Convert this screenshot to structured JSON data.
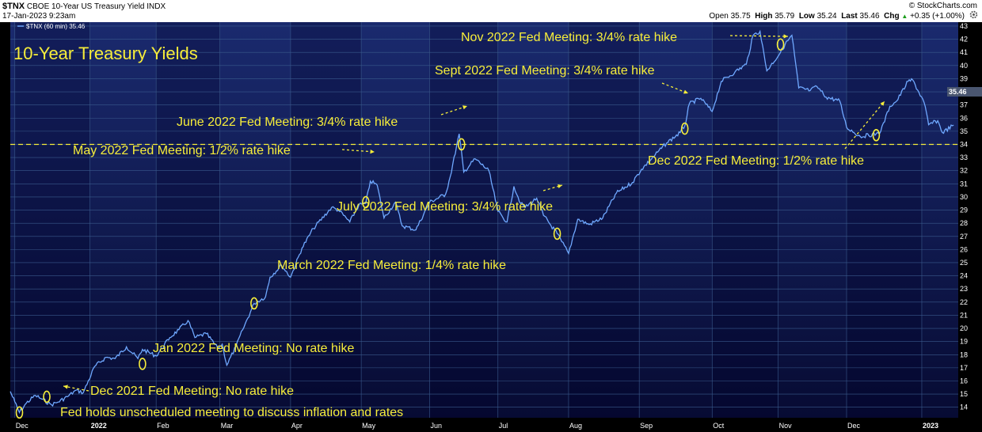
{
  "header": {
    "symbol": "$TNX",
    "name": "CBOE 10-Year US Treasury Yield",
    "exchange": "INDX",
    "date": "17-Jan-2023 9:23am",
    "watermark": "© StockCharts.com",
    "ohlc": [
      {
        "label": "Open",
        "value": "35.75"
      },
      {
        "label": "High",
        "value": "35.79"
      },
      {
        "label": "Low",
        "value": "35.24"
      },
      {
        "label": "Last",
        "value": "35.46"
      },
      {
        "label": "Chg",
        "value": "+0.35 (+1.00%)"
      }
    ],
    "up_arrow": "▲"
  },
  "legend_text": "$TNX (60 min) 35.46",
  "colors": {
    "background": "#000000",
    "plot_fill_top": "#1a2a6e",
    "plot_fill_bottom": "#070b33",
    "grid": "#3a5a8c",
    "line": "#6fa8ff",
    "annotation": "#f7ee3a",
    "price_box": "#4a5670",
    "up": "#1a9d1a"
  },
  "icons": {
    "settings": "gear-icon"
  },
  "chart_data": {
    "type": "line",
    "title": "10-Year Treasury Yields",
    "x_ticks": [
      "Dec",
      "2022",
      "Feb",
      "Mar",
      "Apr",
      "May",
      "Jun",
      "Jul",
      "Aug",
      "Sep",
      "Oct",
      "Nov",
      "Dec",
      "2023"
    ],
    "x_domain": [
      "2021-11-29",
      "2023-01-19"
    ],
    "y_ticks": [
      14,
      15,
      16,
      17,
      18,
      19,
      20,
      21,
      22,
      23,
      24,
      25,
      26,
      27,
      28,
      29,
      30,
      31,
      32,
      33,
      34,
      35,
      36,
      37,
      38,
      39,
      40,
      41,
      42,
      43
    ],
    "ylim": [
      13.2,
      43.3
    ],
    "grid": true,
    "reference_line": 34.0,
    "last_value": "35.46",
    "series": [
      {
        "points": [
          [
            "2021-11-29",
            15.2
          ],
          [
            "2021-12-01",
            14.4
          ],
          [
            "2021-12-03",
            13.6
          ],
          [
            "2021-12-06",
            14.3
          ],
          [
            "2021-12-10",
            14.9
          ],
          [
            "2021-12-13",
            14.6
          ],
          [
            "2021-12-17",
            14.2
          ],
          [
            "2021-12-20",
            14.4
          ],
          [
            "2021-12-24",
            14.8
          ],
          [
            "2021-12-28",
            15.3
          ],
          [
            "2021-12-31",
            15.1
          ],
          [
            "2022-01-05",
            17.1
          ],
          [
            "2022-01-10",
            17.8
          ],
          [
            "2022-01-14",
            17.7
          ],
          [
            "2022-01-19",
            18.6
          ],
          [
            "2022-01-24",
            17.7
          ],
          [
            "2022-01-26",
            18.4
          ],
          [
            "2022-02-01",
            17.9
          ],
          [
            "2022-02-07",
            19.3
          ],
          [
            "2022-02-11",
            19.9
          ],
          [
            "2022-02-15",
            20.6
          ],
          [
            "2022-02-18",
            19.3
          ],
          [
            "2022-02-23",
            19.6
          ],
          [
            "2022-02-28",
            18.5
          ],
          [
            "2022-03-02",
            18.8
          ],
          [
            "2022-03-04",
            17.2
          ],
          [
            "2022-03-08",
            18.6
          ],
          [
            "2022-03-11",
            19.9
          ],
          [
            "2022-03-16",
            21.9
          ],
          [
            "2022-03-21",
            22.4
          ],
          [
            "2022-03-23",
            23.9
          ],
          [
            "2022-03-28",
            24.8
          ],
          [
            "2022-04-01",
            23.9
          ],
          [
            "2022-04-06",
            26.1
          ],
          [
            "2022-04-11",
            27.6
          ],
          [
            "2022-04-19",
            29.2
          ],
          [
            "2022-04-22",
            29.0
          ],
          [
            "2022-04-27",
            28.1
          ],
          [
            "2022-05-01",
            29.4
          ],
          [
            "2022-05-04",
            29.5
          ],
          [
            "2022-05-06",
            31.2
          ],
          [
            "2022-05-09",
            30.9
          ],
          [
            "2022-05-12",
            28.4
          ],
          [
            "2022-05-17",
            29.6
          ],
          [
            "2022-05-20",
            27.8
          ],
          [
            "2022-05-26",
            27.5
          ],
          [
            "2022-06-01",
            29.6
          ],
          [
            "2022-06-08",
            30.2
          ],
          [
            "2022-06-10",
            31.5
          ],
          [
            "2022-06-14",
            34.8
          ],
          [
            "2022-06-16",
            31.9
          ],
          [
            "2022-06-21",
            32.9
          ],
          [
            "2022-06-27",
            32.0
          ],
          [
            "2022-07-01",
            28.9
          ],
          [
            "2022-07-05",
            28.1
          ],
          [
            "2022-07-08",
            30.8
          ],
          [
            "2022-07-11",
            29.5
          ],
          [
            "2022-07-13",
            29.2
          ],
          [
            "2022-07-18",
            29.9
          ],
          [
            "2022-07-21",
            28.6
          ],
          [
            "2022-07-27",
            27.2
          ],
          [
            "2022-07-29",
            26.6
          ],
          [
            "2022-08-01",
            25.7
          ],
          [
            "2022-08-05",
            28.3
          ],
          [
            "2022-08-10",
            27.9
          ],
          [
            "2022-08-16",
            28.4
          ],
          [
            "2022-08-22",
            30.3
          ],
          [
            "2022-08-29",
            31.1
          ],
          [
            "2022-09-02",
            32.1
          ],
          [
            "2022-09-08",
            33.2
          ],
          [
            "2022-09-13",
            34.1
          ],
          [
            "2022-09-19",
            34.9
          ],
          [
            "2022-09-21",
            35.4
          ],
          [
            "2022-09-23",
            37.1
          ],
          [
            "2022-09-28",
            37.5
          ],
          [
            "2022-10-03",
            36.5
          ],
          [
            "2022-10-07",
            38.8
          ],
          [
            "2022-10-13",
            39.5
          ],
          [
            "2022-10-18",
            40.1
          ],
          [
            "2022-10-21",
            42.3
          ],
          [
            "2022-10-24",
            42.6
          ],
          [
            "2022-10-27",
            39.6
          ],
          [
            "2022-11-02",
            41.0
          ],
          [
            "2022-11-04",
            41.6
          ],
          [
            "2022-11-07",
            42.3
          ],
          [
            "2022-11-10",
            38.3
          ],
          [
            "2022-11-15",
            38.1
          ],
          [
            "2022-11-18",
            38.4
          ],
          [
            "2022-11-22",
            37.6
          ],
          [
            "2022-11-28",
            37.3
          ],
          [
            "2022-12-01",
            35.3
          ],
          [
            "2022-12-07",
            34.6
          ],
          [
            "2022-12-14",
            34.8
          ],
          [
            "2022-12-16",
            35.0
          ],
          [
            "2022-12-20",
            36.9
          ],
          [
            "2022-12-23",
            37.3
          ],
          [
            "2022-12-28",
            38.8
          ],
          [
            "2022-12-30",
            38.9
          ],
          [
            "2023-01-04",
            37.2
          ],
          [
            "2023-01-06",
            35.5
          ],
          [
            "2023-01-10",
            35.8
          ],
          [
            "2023-01-12",
            34.9
          ],
          [
            "2023-01-17",
            35.46
          ]
        ]
      }
    ],
    "annotations": [
      {
        "text": "Fed holds unscheduled meeting to discuss inflation and rates",
        "date": "2021-12-03",
        "value": 13.6
      },
      {
        "text": "Dec 2021 Fed Meeting: No rate hike",
        "date": "2021-12-15",
        "value": 14.8
      },
      {
        "text": "Jan 2022 Fed Meeting: No rate hike",
        "date": "2022-01-26",
        "value": 17.3
      },
      {
        "text": "March 2022 Fed Meeting: 1/4% rate hike",
        "date": "2022-03-16",
        "value": 21.9
      },
      {
        "text": "May 2022 Fed Meeting: 1/2% rate hike",
        "date": "2022-05-04",
        "value": 29.6
      },
      {
        "text": "June 2022 Fed Meeting: 3/4% rate hike",
        "date": "2022-06-15",
        "value": 34.0
      },
      {
        "text": "July 2022 Fed Meeting: 3/4% rate hike",
        "date": "2022-07-27",
        "value": 27.2
      },
      {
        "text": "Sept 2022 Fed Meeting: 3/4% rate hike",
        "date": "2022-09-21",
        "value": 35.2
      },
      {
        "text": "Nov 2022 Fed Meeting: 3/4% rate hike",
        "date": "2022-11-02",
        "value": 41.6
      },
      {
        "text": "Dec 2022 Fed Meeting: 1/2% rate hike",
        "date": "2022-12-14",
        "value": 34.7
      }
    ]
  }
}
